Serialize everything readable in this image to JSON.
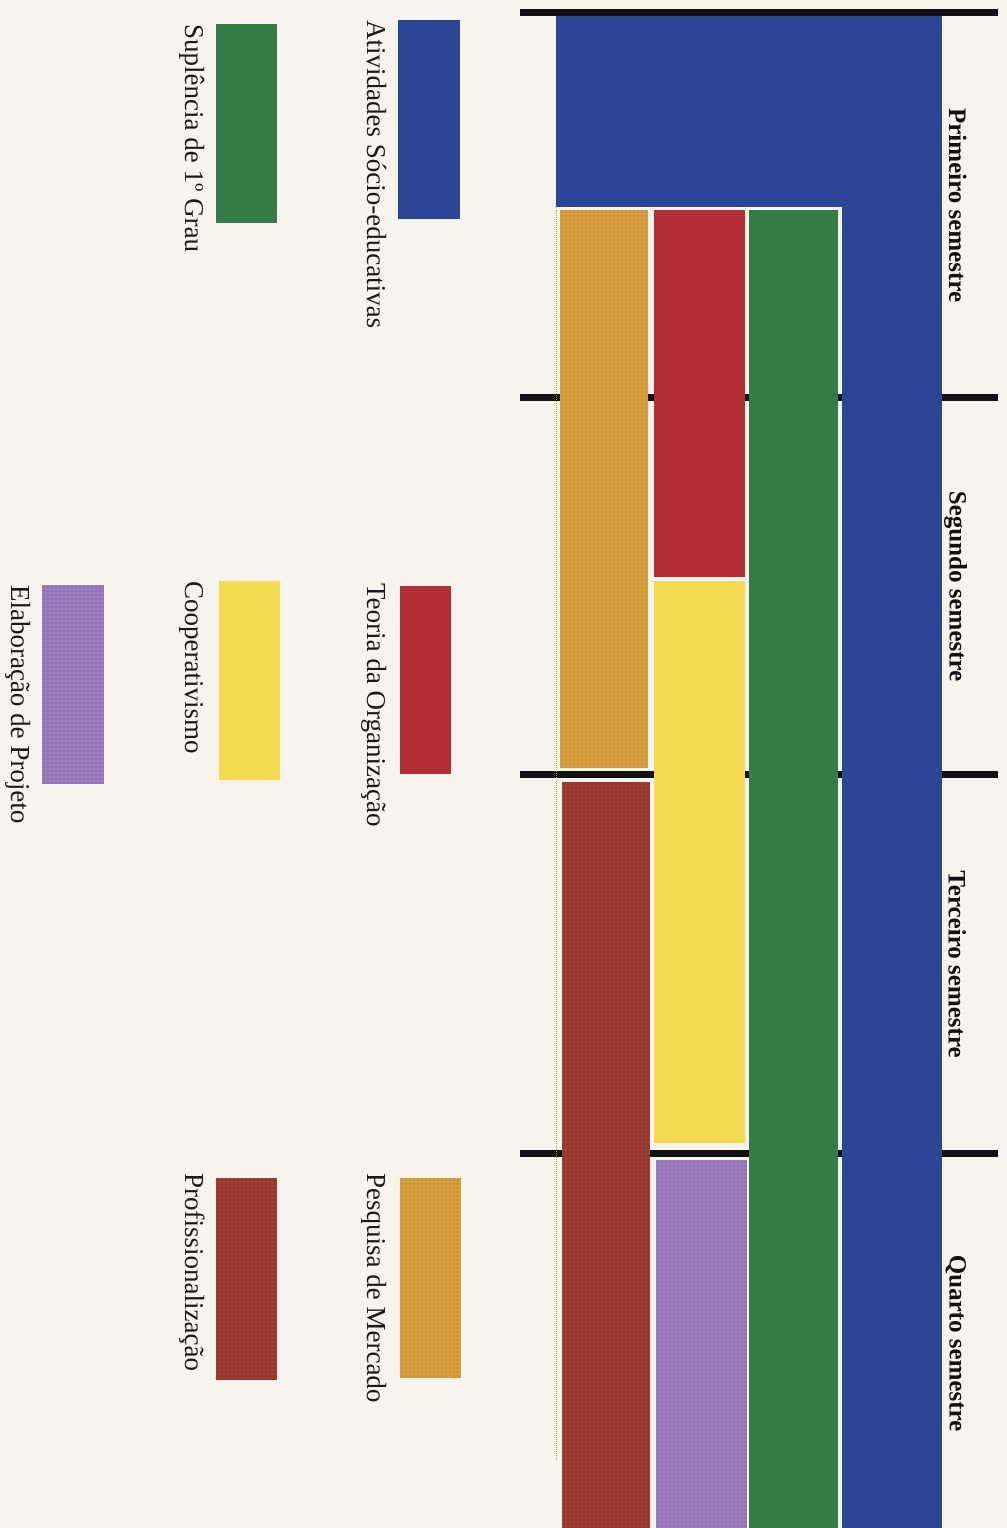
{
  "semesters": [
    "Primeiro semestre",
    "Segundo semestre",
    "Terceiro semestre",
    "Quarto semestre"
  ],
  "legend": {
    "socio": "Atividades Sócio-educativas",
    "suplencia": "Suplência de 1º Grau",
    "teoria": "Teoria da Organização",
    "cooperativismo": "Cooperativismo",
    "elaboracao": "Elaboração de Projeto",
    "pesquisa": "Pesquisa de Mercado",
    "profissionalizacao": "Profissionalização"
  },
  "colors": {
    "socio": "#2b4494",
    "suplencia": "#347b47",
    "teoria": "#b12f34",
    "cooperativismo": "#f3da4e",
    "elaboracao": "#9b7dc0",
    "pesquisa": "#d9a03c",
    "profissionalizacao": "#9e3c32"
  }
}
